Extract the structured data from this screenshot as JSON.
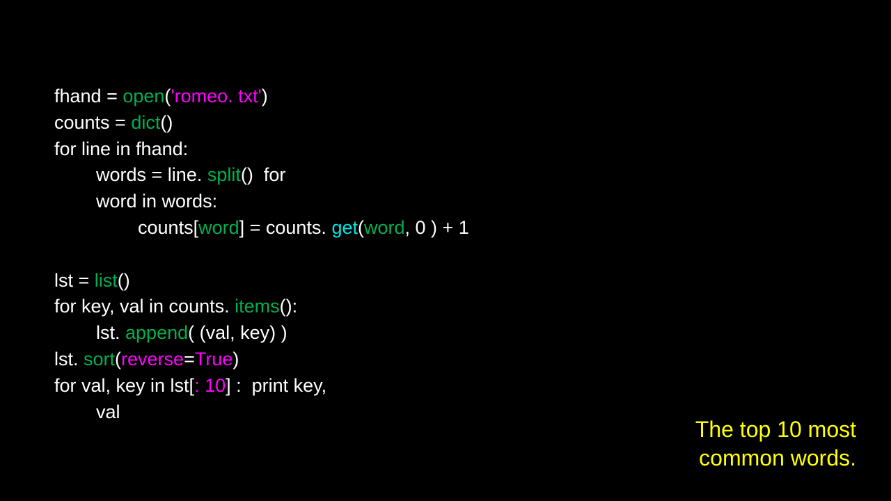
{
  "colors": {
    "background": "#000000",
    "white": "#ffffff",
    "green": "#00b050",
    "magenta": "#ff00ff",
    "cyan": "#00e5e5",
    "yellow": "#ffff00"
  },
  "typography": {
    "code_fontsize": 27,
    "caption_fontsize": 32,
    "font_family": "Arial, Helvetica, sans-serif"
  },
  "code": {
    "line1": {
      "t1": "fhand = ",
      "t2": "open",
      "t3": "(",
      "t4": "'romeo. txt'",
      "t5": ")"
    },
    "line2": {
      "t1": "counts = ",
      "t2": "dict",
      "t3": "()"
    },
    "line3": {
      "t1": "for line in fhand:"
    },
    "line4": {
      "t1": "        words = line. ",
      "t2": "split",
      "t3": "()",
      "t4": "  for"
    },
    "line5": {
      "t1": "        word in words:"
    },
    "line6": {
      "t1": "                counts[",
      "t2": "word",
      "t3": "] = counts. ",
      "t4": "get",
      "t5": "(",
      "t6": "word",
      "t7": ", 0 ) + 1"
    },
    "blank1": " ",
    "line7": {
      "t1": "lst = ",
      "t2": "list",
      "t3": "()"
    },
    "line8": {
      "t1": "for key, val in counts. ",
      "t2": "items",
      "t3": "():"
    },
    "line9": {
      "t1": "        lst. ",
      "t2": "append",
      "t3": "( (val, key) )"
    },
    "line10": {
      "t1": "lst. ",
      "t2": "sort",
      "t3": "(",
      "t4": "reverse",
      "t5": "=",
      "t6": "True",
      "t7": ")"
    },
    "line11": {
      "t1": "for val, key in lst[",
      "t2": ": 10",
      "t3": "] :  print key,"
    },
    "line12": {
      "t1": "        val"
    }
  },
  "caption": {
    "line1": "The top 10 most",
    "line2": "common words."
  }
}
